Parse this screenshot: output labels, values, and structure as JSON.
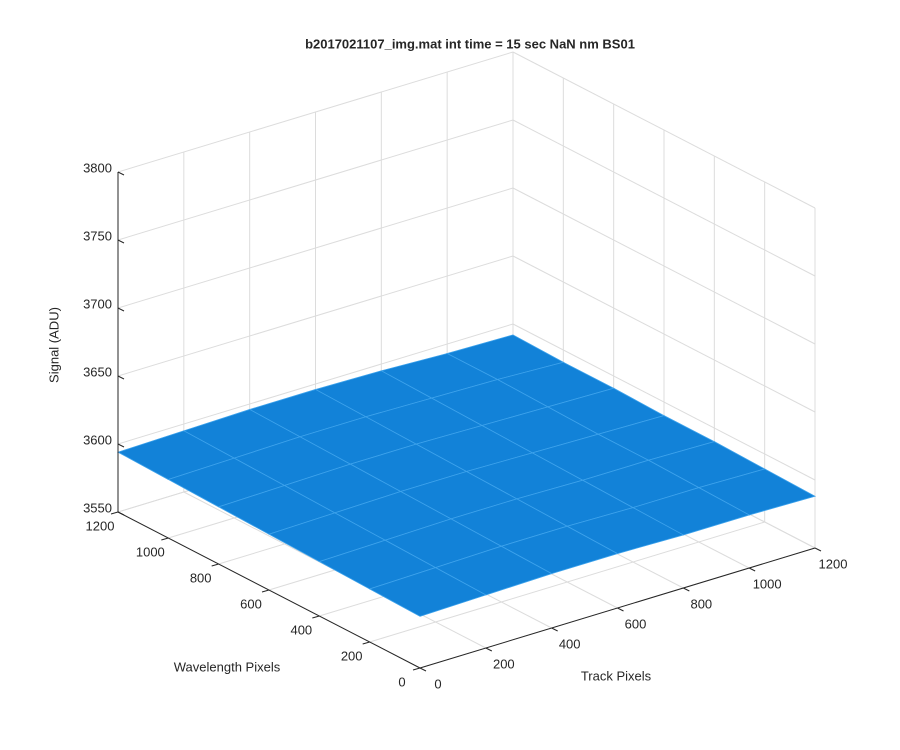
{
  "chart_data": {
    "type": "surface",
    "title": "b2017021107_img.mat int time = 15 sec  NaN nm BS01",
    "x_label": "Track Pixels",
    "y_label": "Wavelength Pixels",
    "z_label": "Signal (ADU)",
    "x": [
      0,
      200,
      400,
      600,
      800,
      1000,
      1200
    ],
    "y": [
      0,
      200,
      400,
      600,
      800,
      1000,
      1200
    ],
    "z": [
      [
        3588,
        3589,
        3590,
        3590,
        3589,
        3589,
        3588
      ],
      [
        3589,
        3590,
        3591,
        3591,
        3590,
        3590,
        3589
      ],
      [
        3590,
        3591,
        3592,
        3592,
        3591,
        3591,
        3590
      ],
      [
        3591,
        3592,
        3593,
        3593,
        3592,
        3591,
        3590
      ],
      [
        3592,
        3593,
        3594,
        3594,
        3593,
        3592,
        3591
      ],
      [
        3593,
        3594,
        3595,
        3595,
        3594,
        3593,
        3591
      ],
      [
        3594,
        3595,
        3596,
        3596,
        3595,
        3593,
        3592
      ]
    ],
    "color": "#1282d8",
    "edge_color": "#3ea3ec",
    "xlim": [
      0,
      1200
    ],
    "ylim": [
      0,
      1200
    ],
    "zlim": [
      3550,
      3800
    ],
    "xticks": [
      0,
      200,
      400,
      600,
      800,
      1000,
      1200
    ],
    "yticks": [
      0,
      200,
      400,
      600,
      800,
      1000,
      1200
    ],
    "zticks": [
      3550,
      3600,
      3650,
      3700,
      3750,
      3800
    ],
    "grid": true
  }
}
